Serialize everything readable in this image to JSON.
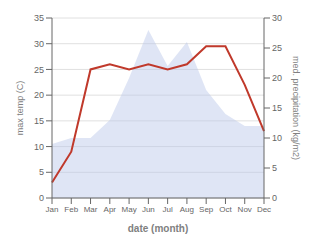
{
  "chart_data": {
    "type": "line",
    "xlabel": "date (month)",
    "ylabel": "max temp (C)",
    "y2label": "med. precipitation (kg/m2)",
    "categories": [
      "Jan",
      "Feb",
      "Mar",
      "Apr",
      "May",
      "Jun",
      "Jul",
      "Aug",
      "Sep",
      "Oct",
      "Nov",
      "Dec"
    ],
    "series": [
      {
        "type": "area",
        "axis": "y2",
        "color": "#b8c5e8",
        "values": [
          9,
          10,
          10,
          13,
          20,
          28,
          22,
          26,
          18,
          14,
          12,
          12
        ]
      },
      {
        "type": "line",
        "color": "#c0392b",
        "values": [
          3,
          9,
          25,
          26,
          25,
          26,
          25,
          26,
          29.5,
          29.5,
          22,
          13
        ]
      }
    ],
    "ylim": [
      0,
      35
    ],
    "yticks": [
      0,
      5,
      10,
      15,
      20,
      25,
      30,
      35
    ],
    "y2lim": [
      0,
      30
    ],
    "y2ticks": [
      0,
      5,
      10,
      15,
      20,
      25,
      30
    ],
    "grid": true
  }
}
